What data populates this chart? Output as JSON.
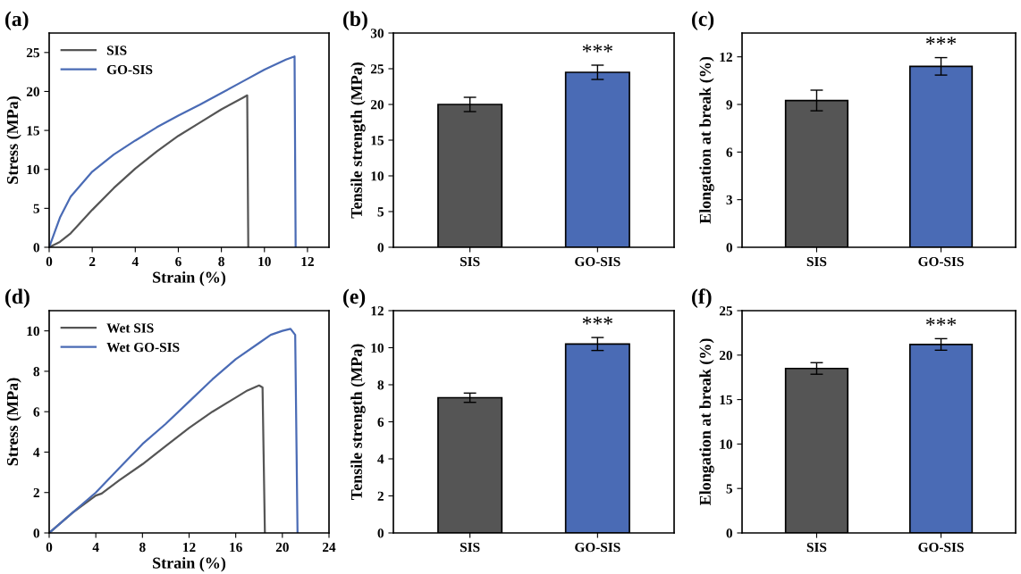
{
  "chart_data": [
    {
      "type": "line",
      "title": "(a)",
      "xlabel": "Strain (%)",
      "ylabel": "Stress (MPa)",
      "xlim": [
        0,
        13
      ],
      "xticks": [
        0,
        2,
        4,
        6,
        8,
        10,
        12
      ],
      "ylim": [
        0,
        27.5
      ],
      "yticks": [
        0,
        5,
        10,
        15,
        20,
        25
      ],
      "legend": "top left",
      "grid": false,
      "series": [
        {
          "name": "SIS",
          "color": "#555555",
          "x": [
            0,
            0.5,
            1,
            2,
            3,
            4,
            5,
            6,
            7,
            8,
            9,
            9.2,
            9.25
          ],
          "values": [
            0,
            0.7,
            1.8,
            4.8,
            7.6,
            10.1,
            12.3,
            14.3,
            16.0,
            17.7,
            19.2,
            19.5,
            0
          ]
        },
        {
          "name": "GO-SIS",
          "color": "#4a6bb5",
          "x": [
            0,
            0.5,
            1,
            2,
            3,
            4,
            5,
            6,
            7,
            8,
            9,
            10,
            11,
            11.4,
            11.45
          ],
          "values": [
            0,
            3.8,
            6.5,
            9.7,
            11.9,
            13.7,
            15.4,
            16.9,
            18.3,
            19.8,
            21.3,
            22.8,
            24.1,
            24.5,
            0
          ]
        }
      ]
    },
    {
      "type": "bar",
      "title": "(b)",
      "ylabel": "Tensile strength (MPa)",
      "categories": [
        "SIS",
        "GO-SIS"
      ],
      "values": [
        20.0,
        24.5
      ],
      "errors": [
        1.0,
        1.0
      ],
      "colors": [
        "#555555",
        "#4a6bb5"
      ],
      "ylim": [
        0,
        30
      ],
      "yticks": [
        0,
        5,
        10,
        15,
        20,
        25,
        30
      ],
      "grid": false,
      "annotations": [
        "***"
      ]
    },
    {
      "type": "bar",
      "title": "(c)",
      "ylabel": "Elongation at break (%)",
      "categories": [
        "SIS",
        "GO-SIS"
      ],
      "values": [
        9.25,
        11.4
      ],
      "errors": [
        0.65,
        0.55
      ],
      "colors": [
        "#555555",
        "#4a6bb5"
      ],
      "ylim": [
        0,
        13.5
      ],
      "yticks": [
        0,
        3,
        6,
        9,
        12
      ],
      "grid": false,
      "annotations": [
        "***"
      ]
    },
    {
      "type": "line",
      "title": "(d)",
      "xlabel": "Strain (%)",
      "ylabel": "Stress (MPa)",
      "xlim": [
        0,
        24
      ],
      "xticks": [
        0,
        4,
        8,
        12,
        16,
        20,
        24
      ],
      "ylim": [
        0,
        11
      ],
      "yticks": [
        0,
        2,
        4,
        6,
        8,
        10
      ],
      "legend": "top left",
      "grid": false,
      "series": [
        {
          "name": "Wet SIS",
          "color": "#555555",
          "x": [
            0,
            2,
            4,
            4.5,
            6,
            8,
            10,
            12,
            14,
            16,
            17,
            18,
            18.3,
            18.5
          ],
          "values": [
            0,
            1.0,
            1.85,
            1.95,
            2.6,
            3.4,
            4.3,
            5.2,
            6.0,
            6.7,
            7.05,
            7.3,
            7.2,
            0
          ]
        },
        {
          "name": "Wet GO-SIS",
          "color": "#4a6bb5",
          "x": [
            0,
            2,
            4,
            6,
            8,
            10,
            12,
            14,
            16,
            18,
            19,
            20,
            20.7,
            21.1,
            21.3
          ],
          "values": [
            0,
            1.0,
            2.0,
            3.2,
            4.4,
            5.4,
            6.5,
            7.6,
            8.6,
            9.4,
            9.8,
            10.0,
            10.1,
            9.8,
            0
          ]
        }
      ]
    },
    {
      "type": "bar",
      "title": "(e)",
      "ylabel": "Tensile strength (MPa)",
      "categories": [
        "SIS",
        "GO-SIS"
      ],
      "values": [
        7.3,
        10.2
      ],
      "errors": [
        0.25,
        0.35
      ],
      "colors": [
        "#555555",
        "#4a6bb5"
      ],
      "ylim": [
        0,
        12
      ],
      "yticks": [
        0,
        2,
        4,
        6,
        8,
        10,
        12
      ],
      "grid": false,
      "annotations": [
        "***"
      ]
    },
    {
      "type": "bar",
      "title": "(f)",
      "ylabel": "Elongation at break (%)",
      "categories": [
        "SIS",
        "GO-SIS"
      ],
      "values": [
        18.5,
        21.2
      ],
      "errors": [
        0.65,
        0.65
      ],
      "colors": [
        "#555555",
        "#4a6bb5"
      ],
      "ylim": [
        0,
        25
      ],
      "yticks": [
        0,
        5,
        10,
        15,
        20,
        25
      ],
      "grid": false,
      "annotations": [
        "***"
      ]
    }
  ]
}
